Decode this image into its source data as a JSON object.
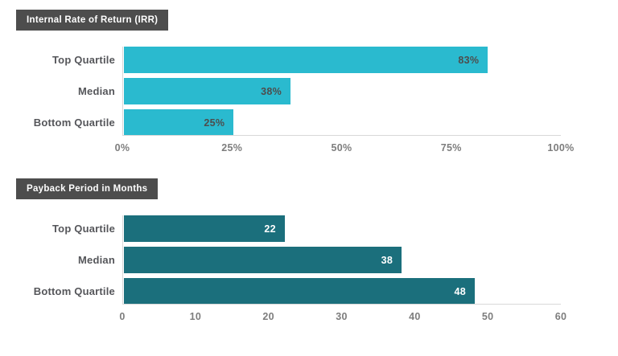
{
  "page": {
    "background": "#ffffff"
  },
  "styles": {
    "title_box_bg": "#4d4d4d",
    "title_text_color": "#ffffff",
    "category_label_color": "#55565a",
    "tick_label_color": "#7d7d7d",
    "axis_line_color": "#d8d8d8"
  },
  "chart_data": [
    {
      "type": "bar",
      "orientation": "horizontal",
      "title": "Internal Rate of Return (IRR)",
      "categories": [
        "Top Quartile",
        "Median",
        "Bottom Quartile"
      ],
      "values": [
        83,
        38,
        25
      ],
      "value_labels": [
        "83%",
        "38%",
        "25%"
      ],
      "xlim": [
        0,
        100
      ],
      "tick_labels": [
        "0%",
        "25%",
        "50%",
        "75%",
        "100%"
      ],
      "grid": false,
      "legend": false,
      "bar_color": "#2abacf",
      "value_label_color": "#4d4d4d",
      "value_label_position": "inside-end"
    },
    {
      "type": "bar",
      "orientation": "horizontal",
      "title": "Payback Period in Months",
      "categories": [
        "Top Quartile",
        "Median",
        "Bottom Quartile"
      ],
      "values": [
        22,
        38,
        48
      ],
      "value_labels": [
        "22",
        "38",
        "48"
      ],
      "xlim": [
        0,
        60
      ],
      "tick_labels": [
        "0",
        "10",
        "20",
        "30",
        "40",
        "50",
        "60"
      ],
      "grid": false,
      "legend": false,
      "bar_color": "#1b6f7c",
      "value_label_color": "#ffffff",
      "value_label_position": "inside-end"
    }
  ]
}
